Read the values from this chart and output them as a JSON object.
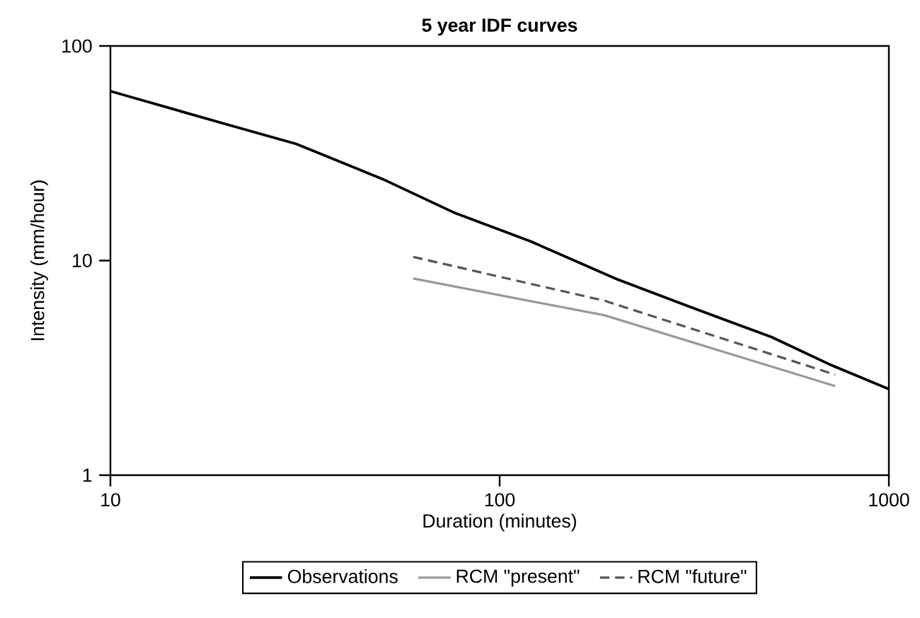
{
  "chart_data": {
    "type": "line",
    "title": "5 year IDF curves",
    "xlabel": "Duration (minutes)",
    "ylabel": "Intensity (mm/hour)",
    "log": "xy",
    "xlim": [
      10,
      1000
    ],
    "ylim": [
      1,
      100
    ],
    "xticks": [
      10,
      100,
      1000
    ],
    "yticks": [
      1,
      10,
      100
    ],
    "grid": false,
    "legend": "bottom",
    "series": [
      {
        "name": "Observations",
        "color": "#000000",
        "line_style": "solid",
        "x": [
          10,
          20,
          30,
          50,
          76,
          120,
          200,
          300,
          500,
          700,
          1000
        ],
        "values": [
          61.6,
          43,
          35,
          24,
          16.8,
          12.3,
          8.2,
          6.2,
          4.4,
          3.3,
          2.52
        ]
      },
      {
        "name": "RCM \"present\"",
        "color": "#999999",
        "line_style": "solid",
        "x": [
          60,
          186,
          728
        ],
        "values": [
          8.25,
          5.56,
          2.6
        ]
      },
      {
        "name": "RCM \"future\"",
        "color": "#555555",
        "line_style": "dashed",
        "x": [
          60,
          186,
          728
        ],
        "values": [
          10.4,
          6.5,
          2.94
        ]
      }
    ]
  }
}
